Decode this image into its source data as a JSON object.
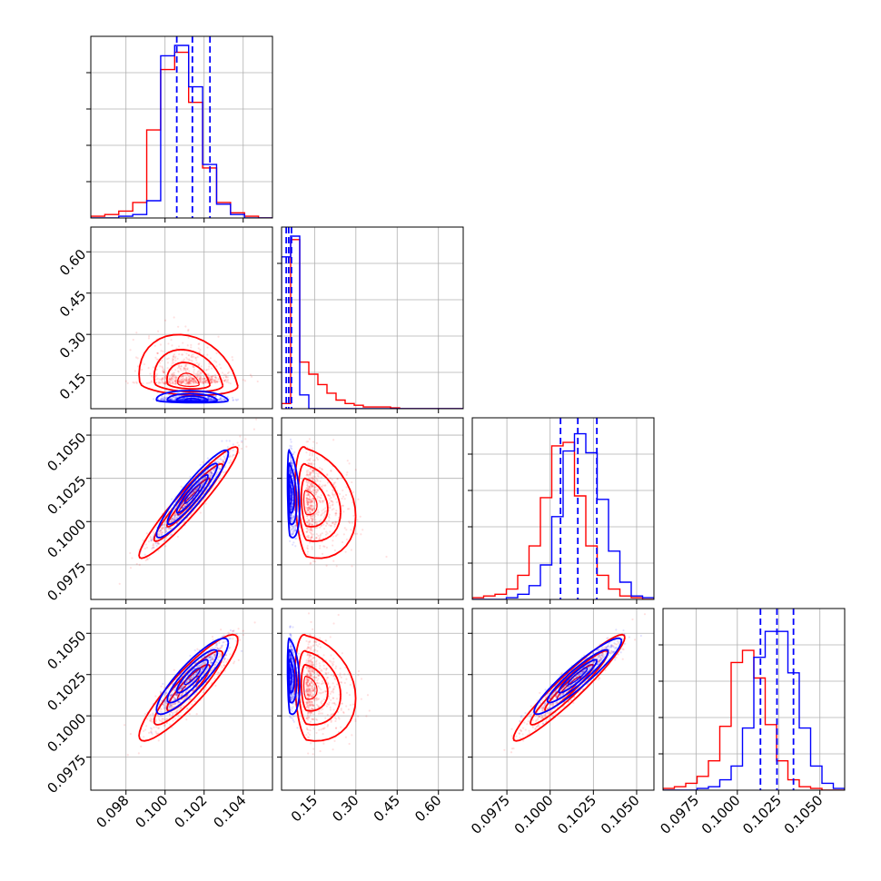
{
  "colors": {
    "series_a": "#0000ff",
    "series_b": "#ff0000",
    "grid": "#b0b0b0",
    "frame": "#000000"
  },
  "chart_data": {
    "type": "corner",
    "grid": true,
    "parameters": [
      {
        "ticks": [
          "0.098",
          "0.100",
          "0.102",
          "0.104"
        ],
        "tick_values": [
          0.098,
          0.1,
          0.102,
          0.104
        ],
        "range": [
          0.0962,
          0.1055
        ]
      },
      {
        "ticks": [
          "0.15",
          "0.30",
          "0.45",
          "0.60"
        ],
        "tick_values": [
          0.15,
          0.3,
          0.45,
          0.6
        ],
        "range": [
          0.03,
          0.69
        ]
      },
      {
        "ticks": [
          "0.0975",
          "0.1000",
          "0.1025",
          "0.1050"
        ],
        "tick_values": [
          0.0975,
          0.1,
          0.1025,
          0.105
        ],
        "range": [
          0.0955,
          0.106
        ]
      },
      {
        "ticks": [
          "0.0975",
          "0.1000",
          "0.1025",
          "0.1050"
        ],
        "tick_values": [
          0.0975,
          0.1,
          0.1025,
          0.105
        ],
        "range": [
          0.0955,
          0.1065
        ]
      }
    ],
    "series": [
      {
        "color": "#0000ff",
        "means": [
          0.1014,
          0.06,
          0.1016,
          0.1024
        ],
        "sigmas": [
          0.0008,
          0.012,
          0.0011,
          0.001
        ],
        "corr": [
          [
            0,
            1,
            -0.1
          ],
          [
            0,
            2,
            0.93
          ],
          [
            0,
            3,
            0.88
          ],
          [
            1,
            2,
            -0.3
          ],
          [
            1,
            3,
            -0.25
          ],
          [
            2,
            3,
            0.93
          ]
        ],
        "quantiles": [
          [
            0.1006,
            0.1014,
            0.1023
          ],
          [
            0.047,
            0.056,
            0.066
          ],
          [
            0.1006,
            0.1016,
            0.1027
          ],
          [
            0.1014,
            0.1024,
            0.1034
          ]
        ],
        "histograms": [
          [
            0,
            0,
            0.01,
            0.02,
            0.1,
            0.94,
            1.0,
            0.76,
            0.31,
            0.08,
            0.02,
            0,
            0
          ],
          [
            0.88,
            1.0,
            0.08,
            0,
            0,
            0,
            0,
            0,
            0,
            0,
            0,
            0,
            0,
            0,
            0,
            0,
            0,
            0,
            0,
            0
          ],
          [
            0,
            0,
            0,
            0.01,
            0.03,
            0.08,
            0.2,
            0.48,
            0.86,
            0.96,
            0.85,
            0.58,
            0.28,
            0.1,
            0.02,
            0.01
          ],
          [
            0,
            0,
            0,
            0.01,
            0.02,
            0.06,
            0.14,
            0.36,
            0.77,
            0.92,
            0.92,
            0.68,
            0.36,
            0.14,
            0.04,
            0.01
          ]
        ]
      },
      {
        "color": "#ff0000",
        "means": [
          0.1012,
          0.12,
          0.1011,
          0.1017
        ],
        "sigmas": [
          0.0011,
          0.06,
          0.0014,
          0.0014
        ],
        "corr": [
          [
            0,
            1,
            -0.2
          ],
          [
            0,
            2,
            0.95
          ],
          [
            0,
            3,
            0.9
          ],
          [
            1,
            2,
            -0.25
          ],
          [
            1,
            3,
            -0.2
          ],
          [
            2,
            3,
            0.95
          ]
        ],
        "quantiles": [],
        "histograms": [
          [
            0.01,
            0.02,
            0.04,
            0.09,
            0.51,
            0.86,
            0.96,
            0.67,
            0.29,
            0.09,
            0.03,
            0.01,
            0
          ],
          [
            0.03,
            0.98,
            0.27,
            0.2,
            0.14,
            0.09,
            0.05,
            0.03,
            0.02,
            0.01,
            0.01,
            0.01,
            0.005,
            0,
            0,
            0,
            0,
            0,
            0,
            0
          ],
          [
            0.01,
            0.02,
            0.03,
            0.06,
            0.14,
            0.31,
            0.59,
            0.89,
            0.91,
            0.6,
            0.31,
            0.14,
            0.06,
            0.02,
            0.01,
            0
          ],
          [
            0.01,
            0.02,
            0.04,
            0.08,
            0.17,
            0.37,
            0.74,
            0.81,
            0.65,
            0.38,
            0.17,
            0.06,
            0.02,
            0.01,
            0,
            0
          ]
        ]
      }
    ]
  }
}
